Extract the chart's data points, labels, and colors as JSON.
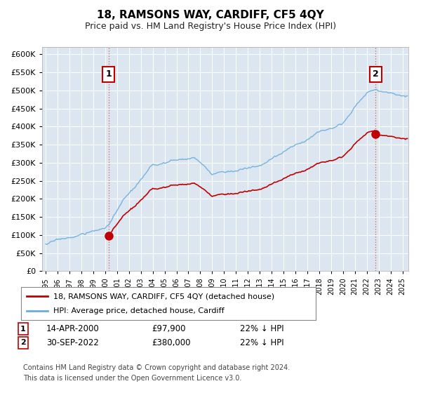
{
  "title": "18, RAMSONS WAY, CARDIFF, CF5 4QY",
  "subtitle": "Price paid vs. HM Land Registry's House Price Index (HPI)",
  "legend_line1": "18, RAMSONS WAY, CARDIFF, CF5 4QY (detached house)",
  "legend_line2": "HPI: Average price, detached house, Cardiff",
  "footnote1": "Contains HM Land Registry data © Crown copyright and database right 2024.",
  "footnote2": "This data is licensed under the Open Government Licence v3.0.",
  "ann1_label": "1",
  "ann1_date": "14-APR-2000",
  "ann1_price": "£97,900",
  "ann1_pct": "22% ↓ HPI",
  "ann2_label": "2",
  "ann2_date": "30-SEP-2022",
  "ann2_price": "£380,000",
  "ann2_pct": "22% ↓ HPI",
  "hpi_color": "#6aaddc",
  "price_color": "#c00000",
  "vline_color": "#d9534f",
  "plot_bg_color": "#dce6f1",
  "ylim": [
    0,
    620000
  ],
  "yticks": [
    0,
    50000,
    100000,
    150000,
    200000,
    250000,
    300000,
    350000,
    400000,
    450000,
    500000,
    550000,
    600000
  ],
  "xlim_start": 1994.7,
  "xlim_end": 2025.5,
  "t1_year": 2000.29,
  "t2_year": 2022.75,
  "price1": 97900,
  "price2": 380000
}
